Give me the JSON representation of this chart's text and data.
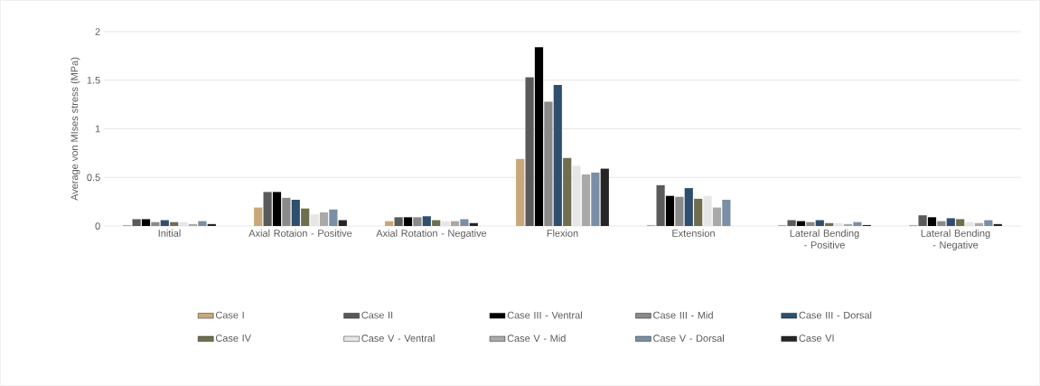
{
  "chart_data": {
    "type": "bar",
    "ylabel": "Average von MIses stress (MPa)",
    "categories": [
      "Initial",
      "Axial Rotaion - Positive",
      "Axial Rotation - Negative",
      "Flexion",
      "Extension",
      "Lateral Bending - Positive",
      "Lateral Bending - Negative"
    ],
    "series": [
      {
        "name": "Case I",
        "color": "#c8a878",
        "values": [
          0.01,
          0.19,
          0.05,
          0.69,
          0.01,
          0.01,
          0.01
        ]
      },
      {
        "name": "Case II",
        "color": "#5a5a5a",
        "values": [
          0.07,
          0.35,
          0.09,
          1.53,
          0.42,
          0.06,
          0.11
        ]
      },
      {
        "name": "Case III - Ventral",
        "color": "#000000",
        "values": [
          0.07,
          0.35,
          0.09,
          1.84,
          0.31,
          0.05,
          0.09
        ]
      },
      {
        "name": "Case III - Mid",
        "color": "#8a8a8a",
        "values": [
          0.04,
          0.29,
          0.09,
          1.28,
          0.3,
          0.04,
          0.05
        ]
      },
      {
        "name": "Case III - Dorsal",
        "color": "#2f4f6f",
        "values": [
          0.06,
          0.27,
          0.1,
          1.45,
          0.39,
          0.06,
          0.08
        ]
      },
      {
        "name": "Case IV",
        "color": "#6f6f4f",
        "values": [
          0.04,
          0.18,
          0.06,
          0.7,
          0.28,
          0.03,
          0.07
        ]
      },
      {
        "name": "Case V - Ventral",
        "color": "#e6e6e6",
        "values": [
          0.04,
          0.12,
          0.05,
          0.62,
          0.31,
          0.03,
          0.04
        ]
      },
      {
        "name": "Case V - Mid",
        "color": "#a9a9a9",
        "values": [
          0.02,
          0.14,
          0.05,
          0.53,
          0.19,
          0.02,
          0.03
        ]
      },
      {
        "name": "Case V - Dorsal",
        "color": "#7a8fa6",
        "values": [
          0.05,
          0.17,
          0.07,
          0.55,
          0.27,
          0.04,
          0.06
        ]
      },
      {
        "name": "Case VI",
        "color": "#262626",
        "values": [
          0.02,
          0.06,
          0.03,
          0.59,
          null,
          0.01,
          0.02
        ]
      }
    ],
    "ylim": [
      0,
      2
    ],
    "yticks": [
      0,
      0.5,
      1,
      1.5,
      2
    ],
    "grid": "y",
    "legend": "bottom"
  }
}
